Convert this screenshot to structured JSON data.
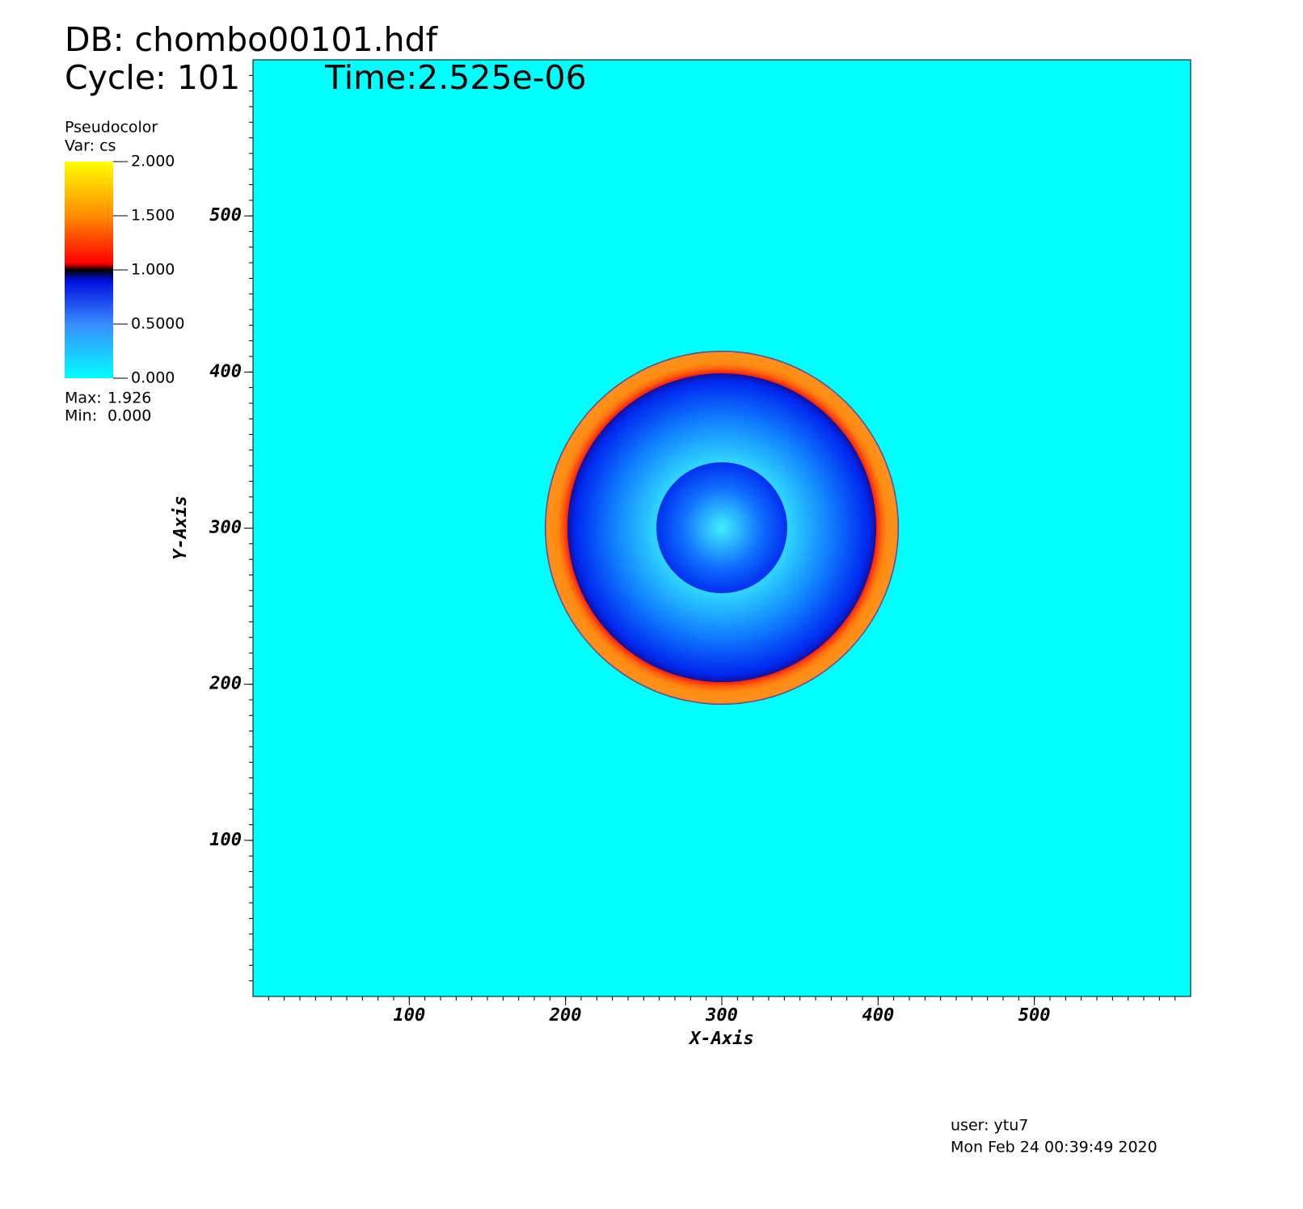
{
  "chart_data": {
    "type": "pseudocolor",
    "title": "DB: chombo00101.hdf",
    "cycle": "Cycle: 101",
    "time": "Time:2.525e-06",
    "xlabel": "X-Axis",
    "ylabel": "Y-Axis",
    "xlim": [
      0,
      600
    ],
    "ylim": [
      0,
      600
    ],
    "xticks": [
      100,
      200,
      300,
      400,
      500
    ],
    "yticks": [
      100,
      200,
      300,
      400,
      500
    ],
    "legend": {
      "title": "Pseudocolor",
      "variable": "Var: cs",
      "range": [
        0,
        2
      ],
      "ticks": [
        {
          "value": 2,
          "label": "2.000"
        },
        {
          "value": 1.5,
          "label": "1.500"
        },
        {
          "value": 1,
          "label": "1.000"
        },
        {
          "value": 0.5,
          "label": "0.5000"
        },
        {
          "value": 0,
          "label": "0.000"
        }
      ],
      "max": {
        "label": "Max:",
        "value": 1.926
      },
      "min": {
        "label": "Min:",
        "value": {
          "value": 0,
          "label": "0.000"
        }
      }
    },
    "user": "user: ytu7",
    "date": "Mon Feb 24 00:39:49 2020"
  }
}
